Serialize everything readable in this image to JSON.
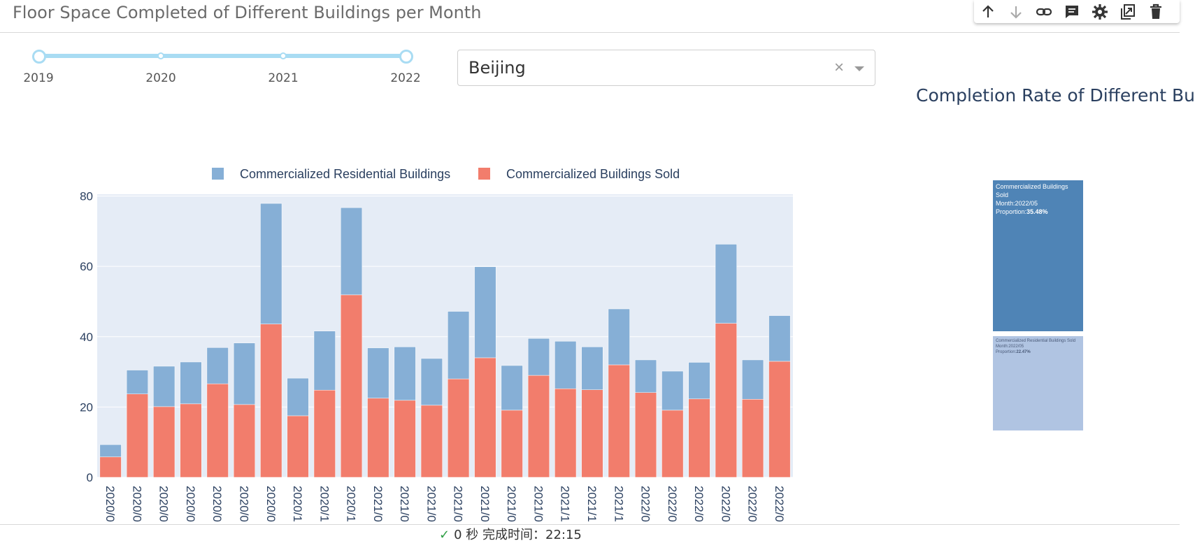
{
  "page_title": "Floor Space Completed of Different Buildings per Month",
  "toolbar": {
    "icons": [
      "arrow-up-icon",
      "arrow-down-icon",
      "link-icon",
      "comment-icon",
      "gear-icon",
      "duplicate-icon",
      "trash-icon"
    ]
  },
  "year_slider": {
    "marks": [
      "2019",
      "2020",
      "2021",
      "2022"
    ],
    "range": [
      "2019",
      "2022"
    ]
  },
  "city_dropdown": {
    "value": "Beijing",
    "clear_symbol": "×"
  },
  "chart_data": [
    {
      "type": "bar",
      "stacked": true,
      "title": "",
      "legend_position": "top",
      "categories": [
        "2020/0",
        "2020/0",
        "2020/0",
        "2020/0",
        "2020/0",
        "2020/0",
        "2020/0",
        "2020/1",
        "2020/1",
        "2020/1",
        "2021/0",
        "2021/0",
        "2021/0",
        "2021/0",
        "2021/0",
        "2021/0",
        "2021/0",
        "2021/1",
        "2021/1",
        "2021/1",
        "2022/0",
        "2022/0",
        "2022/0",
        "2022/0",
        "2022/0",
        "2022/0"
      ],
      "series": [
        {
          "name": "Commercialized Buildings Sold",
          "color": "#f27d6c",
          "values": [
            5.8,
            23.7,
            20.1,
            20.9,
            26.6,
            20.7,
            43.6,
            17.5,
            24.8,
            51.9,
            22.5,
            21.9,
            20.5,
            28.0,
            34.0,
            19.1,
            29.0,
            25.2,
            24.9,
            32.0,
            24.1,
            19.1,
            22.3,
            43.8,
            22.2,
            33.0
          ]
        },
        {
          "name": "Commercialized Residential Buildings",
          "color": "#86afd6",
          "values": [
            3.5,
            6.8,
            11.5,
            11.9,
            10.3,
            17.5,
            34.3,
            10.7,
            16.8,
            24.8,
            14.3,
            15.2,
            13.3,
            19.2,
            25.9,
            12.7,
            10.5,
            13.5,
            12.2,
            15.9,
            9.3,
            11.1,
            10.4,
            22.5,
            11.2,
            13.0
          ]
        }
      ],
      "y_ticks": [
        0,
        20,
        40,
        60,
        80
      ],
      "ylim": [
        0,
        80.5
      ],
      "grid": true
    },
    {
      "type": "treemap",
      "title": "Completion Rate of Different Bu",
      "tiles": [
        {
          "label": "Commercialized Buildings Sold",
          "month_text": "Month:2022/05",
          "proportion_label": "Proportion:",
          "proportion": "35.48%",
          "color": "#4f84b6"
        },
        {
          "label": "Commercialized Residential Buildings Sold",
          "month_text": "Month:2022/05",
          "proportion_label": "Proportion:",
          "proportion": "22.47%",
          "color": "#b0c4e2"
        }
      ]
    }
  ],
  "status_bar": {
    "check": "✓",
    "text": "0 秒    完成时间：22:15"
  }
}
